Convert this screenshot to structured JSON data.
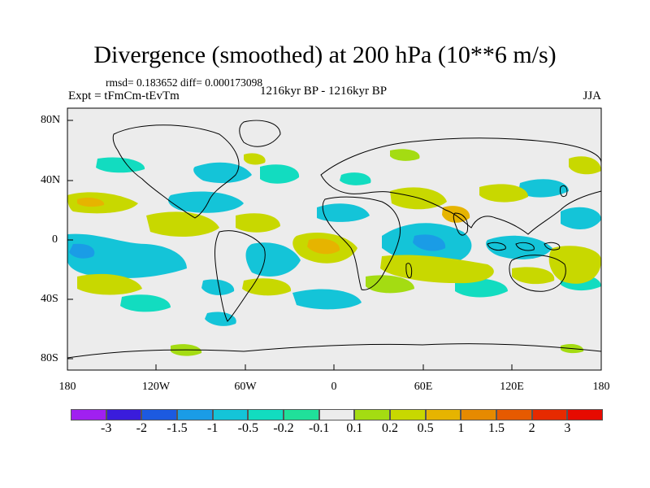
{
  "title": "Divergence (smoothed) at 200 hPa (10**6 m/s)",
  "stats": "rmsd= 0.183652 diff= 0.000173098",
  "expt": "Expt = tFmCm-tEvTm",
  "period": "1216kyr BP - 1216kyr BP",
  "season": "JJA",
  "lat_labels": [
    "80N",
    "40N",
    "0",
    "40S",
    "80S"
  ],
  "lon_labels": [
    "180",
    "120W",
    "60W",
    "0",
    "60E",
    "120E",
    "180"
  ],
  "legend": {
    "labels": [
      "-3",
      "-2",
      "-1.5",
      "-1",
      "-0.5",
      "-0.2",
      "-0.1",
      "0.1",
      "0.2",
      "0.5",
      "1",
      "1.5",
      "2",
      "3"
    ],
    "colors": [
      "#a020f0",
      "#3a1cdc",
      "#1c5ae0",
      "#1a9ce6",
      "#14c4d8",
      "#12dcc0",
      "#20e09a",
      "#ececec",
      "#a4dc12",
      "#c8d800",
      "#e6b400",
      "#e68a00",
      "#e65a00",
      "#e62a00",
      "#e60a00"
    ]
  },
  "colors": {
    "background": "#ececec",
    "positive_light": "#a4dc12",
    "positive_mid": "#c8d800",
    "positive_strong": "#e6b400",
    "negative_light": "#20e09a",
    "negative_mid": "#14c4d8",
    "negative_strong": "#1a9ce6"
  }
}
